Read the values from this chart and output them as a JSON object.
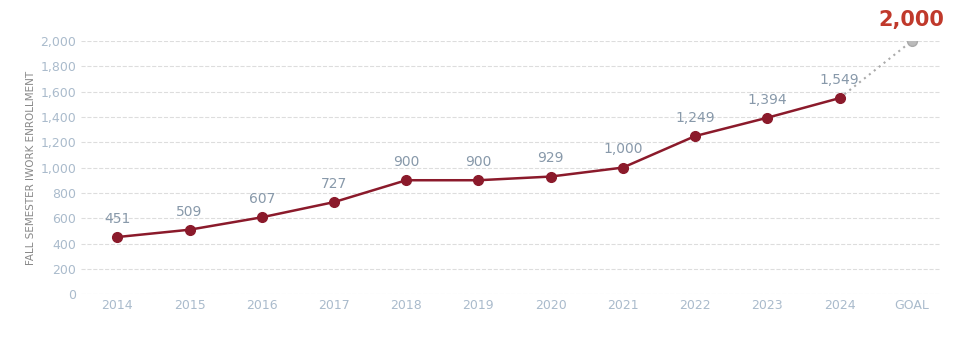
{
  "years": [
    2014,
    2015,
    2016,
    2017,
    2018,
    2019,
    2020,
    2021,
    2022,
    2023,
    2024
  ],
  "values": [
    451,
    509,
    607,
    727,
    900,
    900,
    929,
    1000,
    1249,
    1394,
    1549
  ],
  "goal_value": 2000,
  "line_color": "#8B1A2B",
  "goal_line_color": "#aaaaaa",
  "marker_color": "#8B1A2B",
  "marker_size": 7,
  "data_label_color": "#8899aa",
  "goal_annotation_color": "#C0392B",
  "tick_label_color": "#aabbcc",
  "ylabel": "FALL SEMESTER IWORK ENROLLMENT",
  "ylim": [
    0,
    2000
  ],
  "yticks": [
    0,
    200,
    400,
    600,
    800,
    1000,
    1200,
    1400,
    1600,
    1800,
    2000
  ],
  "background_color": "#ffffff",
  "grid_color": "#dddddd",
  "label_fontsize": 10,
  "goal_label_fontsize": 15,
  "ylabel_fontsize": 7.5,
  "axis_tick_fontsize": 9
}
